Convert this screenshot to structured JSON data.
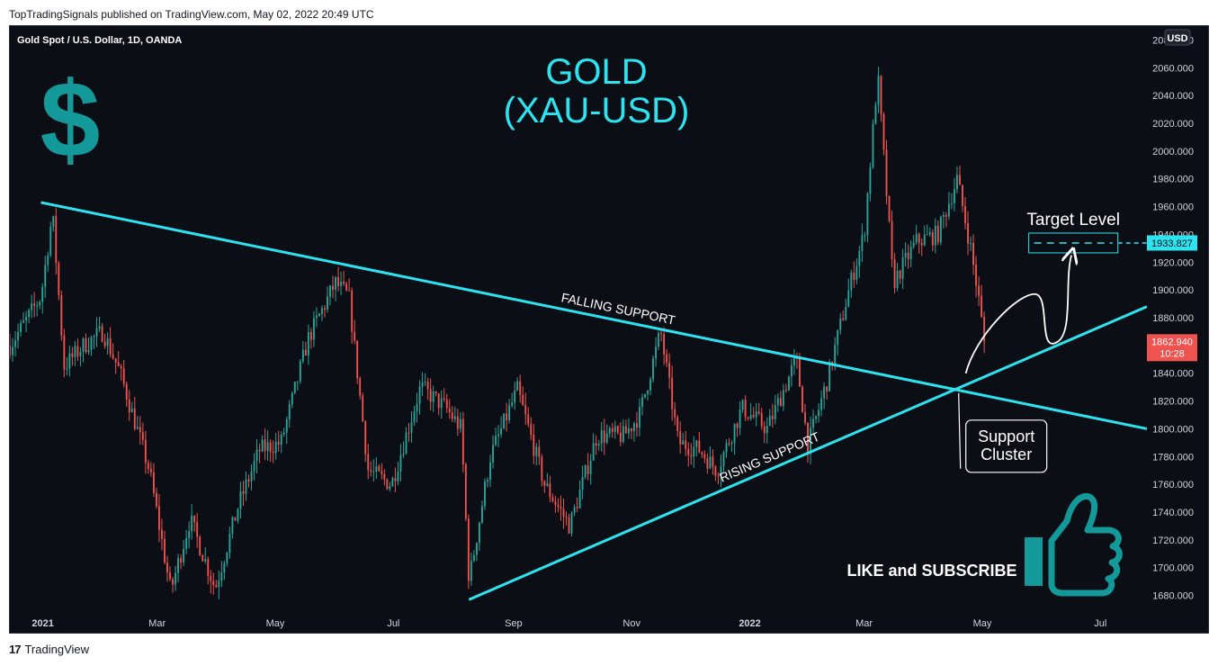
{
  "attribution": "TopTradingSignals published on TradingView.com, May 02, 2022 20:49 UTC",
  "footer": {
    "logo": "17",
    "brand": "TradingView"
  },
  "colors": {
    "up": "#26a69a",
    "down": "#ef5350",
    "line": "#2de3f0",
    "white": "#ffffff",
    "dollar": "#14999a"
  },
  "icons": {
    "dollar": "dollar-sign-icon",
    "thumb": "thumbs-up-icon"
  },
  "chart_data": {
    "type": "candlestick",
    "symbol_info": "Gold Spot / U.S. Dollar, 1D, OANDA",
    "currency": "USD",
    "title_line1": "GOLD",
    "title_line2": "(XAU-USD)",
    "y_range": [
      1670,
      2090
    ],
    "y_ticks": [
      1680,
      1700,
      1720,
      1740,
      1760,
      1780,
      1800,
      1820,
      1840,
      1860,
      1880,
      1900,
      1920,
      1940,
      1960,
      1980,
      2000,
      2020,
      2040,
      2060,
      2080
    ],
    "y_tick_labels": [
      "1680.000",
      "1700.000",
      "1720.000",
      "1740.000",
      "1760.000",
      "1780.000",
      "1800.000",
      "1820.000",
      "1840.000",
      "1860.000",
      "1880.000",
      "1900.000",
      "1920.000",
      "1940.000",
      "1960.000",
      "1980.000",
      "2000.000",
      "2020.000",
      "2040.000",
      "2060.000",
      "2080.000"
    ],
    "x_range": [
      "2020-12-15",
      "2022-07-25"
    ],
    "x_ticks": [
      {
        "date": "2021-01-01",
        "label": "2021",
        "bold": true
      },
      {
        "date": "2021-03-01",
        "label": "Mar"
      },
      {
        "date": "2021-05-01",
        "label": "May"
      },
      {
        "date": "2021-07-01",
        "label": "Jul"
      },
      {
        "date": "2021-09-01",
        "label": "Sep"
      },
      {
        "date": "2021-11-01",
        "label": "Nov"
      },
      {
        "date": "2022-01-01",
        "label": "2022",
        "bold": true
      },
      {
        "date": "2022-03-01",
        "label": "Mar"
      },
      {
        "date": "2022-05-01",
        "label": "May"
      },
      {
        "date": "2022-07-01",
        "label": "Jul"
      }
    ],
    "price_path": [
      [
        "2020-12-15",
        1860
      ],
      [
        "2020-12-22",
        1875
      ],
      [
        "2020-12-31",
        1895
      ],
      [
        "2021-01-06",
        1955
      ],
      [
        "2021-01-12",
        1845
      ],
      [
        "2021-01-22",
        1860
      ],
      [
        "2021-02-01",
        1870
      ],
      [
        "2021-02-10",
        1840
      ],
      [
        "2021-02-25",
        1770
      ],
      [
        "2021-03-08",
        1683
      ],
      [
        "2021-03-18",
        1735
      ],
      [
        "2021-03-31",
        1685
      ],
      [
        "2021-04-12",
        1745
      ],
      [
        "2021-04-23",
        1785
      ],
      [
        "2021-05-04",
        1790
      ],
      [
        "2021-05-18",
        1865
      ],
      [
        "2021-06-01",
        1905
      ],
      [
        "2021-06-08",
        1895
      ],
      [
        "2021-06-18",
        1770
      ],
      [
        "2021-06-30",
        1760
      ],
      [
        "2021-07-15",
        1830
      ],
      [
        "2021-07-28",
        1815
      ],
      [
        "2021-08-05",
        1800
      ],
      [
        "2021-08-09",
        1690
      ],
      [
        "2021-08-20",
        1780
      ],
      [
        "2021-09-03",
        1828
      ],
      [
        "2021-09-17",
        1760
      ],
      [
        "2021-09-30",
        1730
      ],
      [
        "2021-10-14",
        1795
      ],
      [
        "2021-10-28",
        1795
      ],
      [
        "2021-11-05",
        1810
      ],
      [
        "2021-11-16",
        1870
      ],
      [
        "2021-11-25",
        1790
      ],
      [
        "2021-12-06",
        1785
      ],
      [
        "2021-12-15",
        1770
      ],
      [
        "2021-12-28",
        1815
      ],
      [
        "2022-01-10",
        1800
      ],
      [
        "2022-01-25",
        1850
      ],
      [
        "2022-01-31",
        1788
      ],
      [
        "2022-02-10",
        1835
      ],
      [
        "2022-02-22",
        1905
      ],
      [
        "2022-03-01",
        1940
      ],
      [
        "2022-03-08",
        2055
      ],
      [
        "2022-03-16",
        1905
      ],
      [
        "2022-03-28",
        1935
      ],
      [
        "2022-04-08",
        1940
      ],
      [
        "2022-04-18",
        1980
      ],
      [
        "2022-04-25",
        1930
      ],
      [
        "2022-04-29",
        1895
      ],
      [
        "2022-05-02",
        1862.94
      ]
    ],
    "candle_count": 360,
    "trendlines": [
      {
        "name": "FALLING SUPPORT",
        "from": [
          "2020-12-31",
          1963
        ],
        "to": [
          "2022-07-25",
          1800
        ]
      },
      {
        "name": "RISING SUPPORT",
        "from": [
          "2021-08-09",
          1677
        ],
        "to": [
          "2022-07-25",
          1888
        ]
      }
    ],
    "target": {
      "label": "Target Level",
      "price": 1933.827,
      "price_label": "1933.827",
      "from": "2022-05-25",
      "to": "2022-07-10"
    },
    "current": {
      "price_label": "1862.940",
      "time_label": "10:28"
    },
    "annotations": {
      "falling_label": "FALLING SUPPORT",
      "rising_label": "RISING SUPPORT",
      "support_line1": "Support",
      "support_line2": "Cluster",
      "cta": "LIKE and SUBSCRIBE"
    }
  }
}
